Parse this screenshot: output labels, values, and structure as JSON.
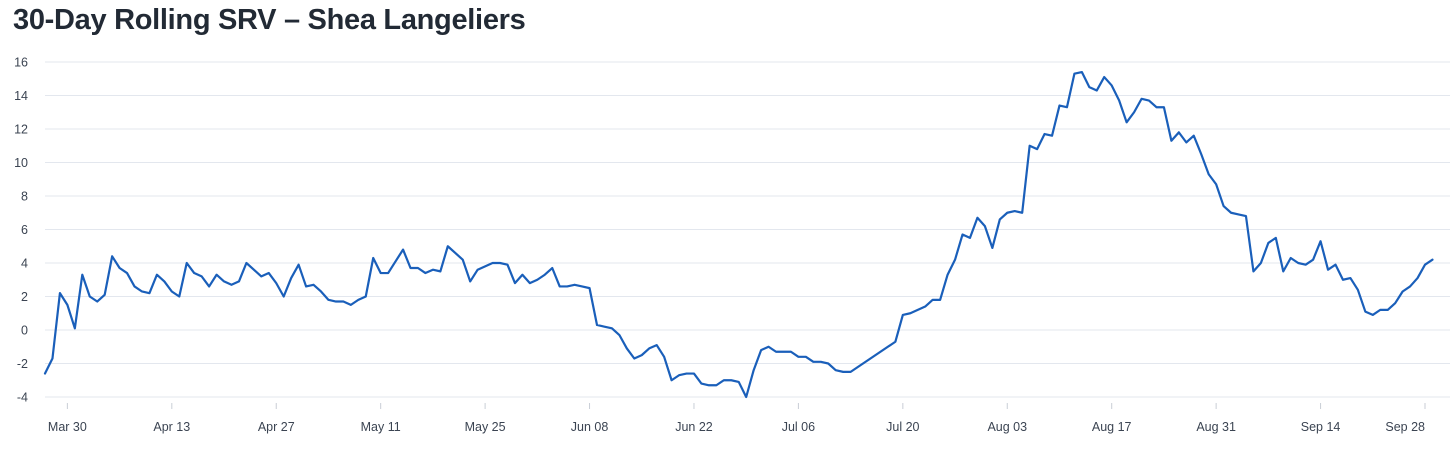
{
  "chart_data": {
    "type": "line",
    "title": "30-Day Rolling SRV – Shea Langeliers",
    "xlabel": "",
    "ylabel": "",
    "x_start": "2026-03-27",
    "x_end": "2026-09-28",
    "ylim": [
      -4,
      16
    ],
    "y_ticks": [
      16,
      14,
      12,
      10,
      8,
      6,
      4,
      2,
      0,
      -2,
      -4
    ],
    "x_ticks": [
      {
        "label": "Mar 30",
        "date": "2026-03-30"
      },
      {
        "label": "Apr 13",
        "date": "2026-04-13"
      },
      {
        "label": "Apr 27",
        "date": "2026-04-27"
      },
      {
        "label": "May 11",
        "date": "2026-05-11"
      },
      {
        "label": "May 25",
        "date": "2026-05-25"
      },
      {
        "label": "Jun 08",
        "date": "2026-06-08"
      },
      {
        "label": "Jun 22",
        "date": "2026-06-22"
      },
      {
        "label": "Jul 06",
        "date": "2026-07-06"
      },
      {
        "label": "Jul 20",
        "date": "2026-07-20"
      },
      {
        "label": "Aug 03",
        "date": "2026-08-03"
      },
      {
        "label": "Aug 17",
        "date": "2026-08-17"
      },
      {
        "label": "Aug 31",
        "date": "2026-08-31"
      },
      {
        "label": "Sep 14",
        "date": "2026-09-14"
      },
      {
        "label": "Sep 28",
        "date": "2026-09-28"
      }
    ],
    "grid": true,
    "series": [
      {
        "color": "#1a5fba",
        "points": [
          [
            "2026-03-27",
            -2.6
          ],
          [
            "2026-03-28",
            -1.7
          ],
          [
            "2026-03-29",
            2.2
          ],
          [
            "2026-03-30",
            1.5
          ],
          [
            "2026-03-31",
            0.1
          ],
          [
            "2026-04-01",
            3.3
          ],
          [
            "2026-04-02",
            2.0
          ],
          [
            "2026-04-03",
            1.7
          ],
          [
            "2026-04-04",
            2.1
          ],
          [
            "2026-04-05",
            4.4
          ],
          [
            "2026-04-06",
            3.7
          ],
          [
            "2026-04-07",
            3.4
          ],
          [
            "2026-04-08",
            2.6
          ],
          [
            "2026-04-09",
            2.3
          ],
          [
            "2026-04-10",
            2.2
          ],
          [
            "2026-04-11",
            3.3
          ],
          [
            "2026-04-12",
            2.9
          ],
          [
            "2026-04-13",
            2.3
          ],
          [
            "2026-04-14",
            2.0
          ],
          [
            "2026-04-15",
            4.0
          ],
          [
            "2026-04-16",
            3.4
          ],
          [
            "2026-04-17",
            3.2
          ],
          [
            "2026-04-18",
            2.6
          ],
          [
            "2026-04-19",
            3.3
          ],
          [
            "2026-04-20",
            2.9
          ],
          [
            "2026-04-21",
            2.7
          ],
          [
            "2026-04-22",
            2.9
          ],
          [
            "2026-04-23",
            4.0
          ],
          [
            "2026-04-24",
            3.6
          ],
          [
            "2026-04-25",
            3.2
          ],
          [
            "2026-04-26",
            3.4
          ],
          [
            "2026-04-27",
            2.8
          ],
          [
            "2026-04-28",
            2.0
          ],
          [
            "2026-04-29",
            3.1
          ],
          [
            "2026-04-30",
            3.9
          ],
          [
            "2026-05-01",
            2.6
          ],
          [
            "2026-05-02",
            2.7
          ],
          [
            "2026-05-03",
            2.3
          ],
          [
            "2026-05-04",
            1.8
          ],
          [
            "2026-05-05",
            1.7
          ],
          [
            "2026-05-06",
            1.7
          ],
          [
            "2026-05-07",
            1.5
          ],
          [
            "2026-05-08",
            1.8
          ],
          [
            "2026-05-09",
            2.0
          ],
          [
            "2026-05-10",
            4.3
          ],
          [
            "2026-05-11",
            3.4
          ],
          [
            "2026-05-12",
            3.4
          ],
          [
            "2026-05-13",
            4.1
          ],
          [
            "2026-05-14",
            4.8
          ],
          [
            "2026-05-15",
            3.7
          ],
          [
            "2026-05-16",
            3.7
          ],
          [
            "2026-05-17",
            3.4
          ],
          [
            "2026-05-18",
            3.6
          ],
          [
            "2026-05-19",
            3.5
          ],
          [
            "2026-05-20",
            5.0
          ],
          [
            "2026-05-21",
            4.6
          ],
          [
            "2026-05-22",
            4.2
          ],
          [
            "2026-05-23",
            2.9
          ],
          [
            "2026-05-24",
            3.6
          ],
          [
            "2026-05-25",
            3.8
          ],
          [
            "2026-05-26",
            4.0
          ],
          [
            "2026-05-27",
            4.0
          ],
          [
            "2026-05-28",
            3.9
          ],
          [
            "2026-05-29",
            2.8
          ],
          [
            "2026-05-30",
            3.3
          ],
          [
            "2026-05-31",
            2.8
          ],
          [
            "2026-06-01",
            3.0
          ],
          [
            "2026-06-02",
            3.3
          ],
          [
            "2026-06-03",
            3.7
          ],
          [
            "2026-06-04",
            2.6
          ],
          [
            "2026-06-05",
            2.6
          ],
          [
            "2026-06-06",
            2.7
          ],
          [
            "2026-06-07",
            2.6
          ],
          [
            "2026-06-08",
            2.5
          ],
          [
            "2026-06-09",
            0.3
          ],
          [
            "2026-06-10",
            0.2
          ],
          [
            "2026-06-11",
            0.1
          ],
          [
            "2026-06-12",
            -0.3
          ],
          [
            "2026-06-13",
            -1.1
          ],
          [
            "2026-06-14",
            -1.7
          ],
          [
            "2026-06-15",
            -1.5
          ],
          [
            "2026-06-16",
            -1.1
          ],
          [
            "2026-06-17",
            -0.9
          ],
          [
            "2026-06-18",
            -1.6
          ],
          [
            "2026-06-19",
            -3.0
          ],
          [
            "2026-06-20",
            -2.7
          ],
          [
            "2026-06-21",
            -2.6
          ],
          [
            "2026-06-22",
            -2.6
          ],
          [
            "2026-06-23",
            -3.2
          ],
          [
            "2026-06-24",
            -3.3
          ],
          [
            "2026-06-25",
            -3.3
          ],
          [
            "2026-06-26",
            -3.0
          ],
          [
            "2026-06-27",
            -3.0
          ],
          [
            "2026-06-28",
            -3.1
          ],
          [
            "2026-06-29",
            -4.0
          ],
          [
            "2026-06-30",
            -2.4
          ],
          [
            "2026-07-01",
            -1.2
          ],
          [
            "2026-07-02",
            -1.0
          ],
          [
            "2026-07-03",
            -1.3
          ],
          [
            "2026-07-04",
            -1.3
          ],
          [
            "2026-07-05",
            -1.3
          ],
          [
            "2026-07-06",
            -1.6
          ],
          [
            "2026-07-07",
            -1.6
          ],
          [
            "2026-07-08",
            -1.9
          ],
          [
            "2026-07-09",
            -1.9
          ],
          [
            "2026-07-10",
            -2.0
          ],
          [
            "2026-07-11",
            -2.4
          ],
          [
            "2026-07-12",
            -2.5
          ],
          [
            "2026-07-13",
            -2.5
          ],
          [
            "2026-07-19",
            -0.7
          ],
          [
            "2026-07-20",
            0.9
          ],
          [
            "2026-07-21",
            1.0
          ],
          [
            "2026-07-22",
            1.2
          ],
          [
            "2026-07-23",
            1.4
          ],
          [
            "2026-07-24",
            1.8
          ],
          [
            "2026-07-25",
            1.8
          ],
          [
            "2026-07-26",
            3.3
          ],
          [
            "2026-07-27",
            4.2
          ],
          [
            "2026-07-28",
            5.7
          ],
          [
            "2026-07-29",
            5.5
          ],
          [
            "2026-07-30",
            6.7
          ],
          [
            "2026-07-31",
            6.2
          ],
          [
            "2026-08-01",
            4.9
          ],
          [
            "2026-08-02",
            6.6
          ],
          [
            "2026-08-03",
            7.0
          ],
          [
            "2026-08-04",
            7.1
          ],
          [
            "2026-08-05",
            7.0
          ],
          [
            "2026-08-06",
            11.0
          ],
          [
            "2026-08-07",
            10.8
          ],
          [
            "2026-08-08",
            11.7
          ],
          [
            "2026-08-09",
            11.6
          ],
          [
            "2026-08-10",
            13.4
          ],
          [
            "2026-08-11",
            13.3
          ],
          [
            "2026-08-12",
            15.3
          ],
          [
            "2026-08-13",
            15.4
          ],
          [
            "2026-08-14",
            14.5
          ],
          [
            "2026-08-15",
            14.3
          ],
          [
            "2026-08-16",
            15.1
          ],
          [
            "2026-08-17",
            14.6
          ],
          [
            "2026-08-18",
            13.7
          ],
          [
            "2026-08-19",
            12.4
          ],
          [
            "2026-08-20",
            13.0
          ],
          [
            "2026-08-21",
            13.8
          ],
          [
            "2026-08-22",
            13.7
          ],
          [
            "2026-08-23",
            13.3
          ],
          [
            "2026-08-24",
            13.3
          ],
          [
            "2026-08-25",
            11.3
          ],
          [
            "2026-08-26",
            11.8
          ],
          [
            "2026-08-27",
            11.2
          ],
          [
            "2026-08-28",
            11.6
          ],
          [
            "2026-08-29",
            10.5
          ],
          [
            "2026-08-30",
            9.3
          ],
          [
            "2026-08-31",
            8.7
          ],
          [
            "2026-09-01",
            7.4
          ],
          [
            "2026-09-02",
            7.0
          ],
          [
            "2026-09-03",
            6.9
          ],
          [
            "2026-09-04",
            6.8
          ],
          [
            "2026-09-05",
            3.5
          ],
          [
            "2026-09-06",
            4.0
          ],
          [
            "2026-09-07",
            5.2
          ],
          [
            "2026-09-08",
            5.5
          ],
          [
            "2026-09-09",
            3.5
          ],
          [
            "2026-09-10",
            4.3
          ],
          [
            "2026-09-11",
            4.0
          ],
          [
            "2026-09-12",
            3.9
          ],
          [
            "2026-09-13",
            4.2
          ],
          [
            "2026-09-14",
            5.3
          ],
          [
            "2026-09-15",
            3.6
          ],
          [
            "2026-09-16",
            3.9
          ],
          [
            "2026-09-17",
            3.0
          ],
          [
            "2026-09-18",
            3.1
          ],
          [
            "2026-09-19",
            2.4
          ],
          [
            "2026-09-20",
            1.1
          ],
          [
            "2026-09-21",
            0.9
          ],
          [
            "2026-09-22",
            1.2
          ],
          [
            "2026-09-23",
            1.2
          ],
          [
            "2026-09-24",
            1.6
          ],
          [
            "2026-09-25",
            2.3
          ],
          [
            "2026-09-26",
            2.6
          ],
          [
            "2026-09-27",
            3.1
          ],
          [
            "2026-09-28",
            3.9
          ],
          [
            "2026-09-29",
            4.2
          ]
        ]
      }
    ]
  }
}
